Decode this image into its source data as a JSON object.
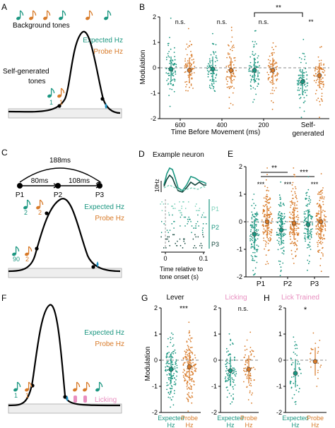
{
  "colors": {
    "expected": "#1a9680",
    "probe": "#d87a28",
    "lick": "#e88fc0",
    "drop": "#2196c8",
    "gray": "#999999"
  },
  "panelA": {
    "label": "A",
    "background_tones": "Background tones",
    "expected": "Expected Hz",
    "probe": "Probe Hz",
    "self_generated_1": "Self-generated",
    "self_generated_2": "tones",
    "num1": "1",
    "num2": "1"
  },
  "panelB": {
    "label": "B",
    "ylabel": "Modulation",
    "xlabel": "Time Before Movement (ms)",
    "yticks": [
      "2",
      "1",
      "0",
      "-1",
      "-2"
    ],
    "xticks": [
      "600",
      "400",
      "200"
    ],
    "xlabel_self_1": "Self-",
    "xlabel_self_2": "generated",
    "sig": [
      "n.s.",
      "n.s.",
      "n.s.",
      "**",
      "**"
    ]
  },
  "panelC": {
    "label": "C",
    "t_total": "188ms",
    "t1": "80ms",
    "t2": "108ms",
    "p1": "P1",
    "p2": "P2",
    "p3": "P3",
    "expected": "Expected Hz",
    "probe": "Probe Hz",
    "n1": "2",
    "n2": "2",
    "n3": "90",
    "n4": "2"
  },
  "panelD": {
    "label": "D",
    "title": "Example neuron",
    "scale": "10Hz",
    "xlabel_1": "Time relative to",
    "xlabel_2": "tone onset (s)",
    "xticks": [
      "0",
      "0.1"
    ],
    "rows": [
      "P1",
      "P2",
      "P3"
    ]
  },
  "panelE": {
    "label": "E",
    "yticks": [
      "2",
      "1",
      "0",
      "-1",
      "-2"
    ],
    "xticks": [
      "P1",
      "P2",
      "P3"
    ],
    "sig_top": [
      "**",
      "***"
    ],
    "sig_inner": [
      "***",
      "***",
      "***"
    ]
  },
  "panelF": {
    "label": "F",
    "expected": "Expected Hz",
    "probe": "Probe Hz",
    "licking": "Licking",
    "num1": "1",
    "num2": "1"
  },
  "panelG": {
    "label": "G",
    "lever": "Lever",
    "licking": "Licking",
    "ylabel": "Modulation",
    "yticks": [
      "2",
      "1",
      "0",
      "-1",
      "-2"
    ],
    "sig1": "***",
    "sig2": "n.s.",
    "x_expected_1": "Expected",
    "x_expected_2": "Hz",
    "x_probe_1": "Probe",
    "x_probe_2": "Hz"
  },
  "panelH": {
    "label": "H",
    "title": "Lick Trained",
    "sig": "*",
    "yticks": [
      "2",
      "1",
      "0",
      "-1",
      "-2"
    ],
    "x_expected_1": "Expected",
    "x_expected_2": "Hz",
    "x_probe_1": "Probe",
    "x_probe_2": "Hz"
  },
  "chart_data": [
    {
      "type": "scatter",
      "panel": "B",
      "ylim": [
        -2,
        2
      ],
      "ylabel": "Modulation",
      "xlabel": "Time Before Movement (ms)",
      "categories": [
        "600",
        "400",
        "200",
        "Self-generated"
      ],
      "series": [
        {
          "name": "Expected Hz",
          "means": [
            -0.05,
            -0.05,
            -0.1,
            -0.55
          ]
        },
        {
          "name": "Probe Hz",
          "means": [
            -0.1,
            -0.1,
            -0.1,
            -0.3
          ]
        }
      ]
    },
    {
      "type": "scatter",
      "panel": "E",
      "ylim": [
        -2,
        2
      ],
      "categories": [
        "P1",
        "P2",
        "P3"
      ],
      "series": [
        {
          "name": "Expected Hz",
          "means": [
            -0.45,
            -0.3,
            -0.1
          ]
        },
        {
          "name": "Probe Hz",
          "means": [
            0.0,
            -0.05,
            0.0
          ]
        }
      ]
    },
    {
      "type": "scatter",
      "panel": "G-Lever",
      "ylim": [
        -2,
        2
      ],
      "categories": [
        "Expected Hz",
        "Probe Hz"
      ],
      "series": [
        {
          "name": "Expected Hz",
          "means": [
            -0.35
          ]
        },
        {
          "name": "Probe Hz",
          "means": [
            -0.25
          ]
        }
      ]
    },
    {
      "type": "scatter",
      "panel": "G-Licking",
      "ylim": [
        -2,
        2
      ],
      "categories": [
        "Expected Hz",
        "Probe Hz"
      ],
      "series": [
        {
          "name": "Expected Hz",
          "means": [
            -0.4
          ]
        },
        {
          "name": "Probe Hz",
          "means": [
            -0.35
          ]
        }
      ]
    },
    {
      "type": "scatter",
      "panel": "H",
      "ylim": [
        -2,
        2
      ],
      "categories": [
        "Expected Hz",
        "Probe Hz"
      ],
      "series": [
        {
          "name": "Expected Hz",
          "means": [
            -0.5
          ]
        },
        {
          "name": "Probe Hz",
          "means": [
            -0.05
          ]
        }
      ]
    }
  ]
}
